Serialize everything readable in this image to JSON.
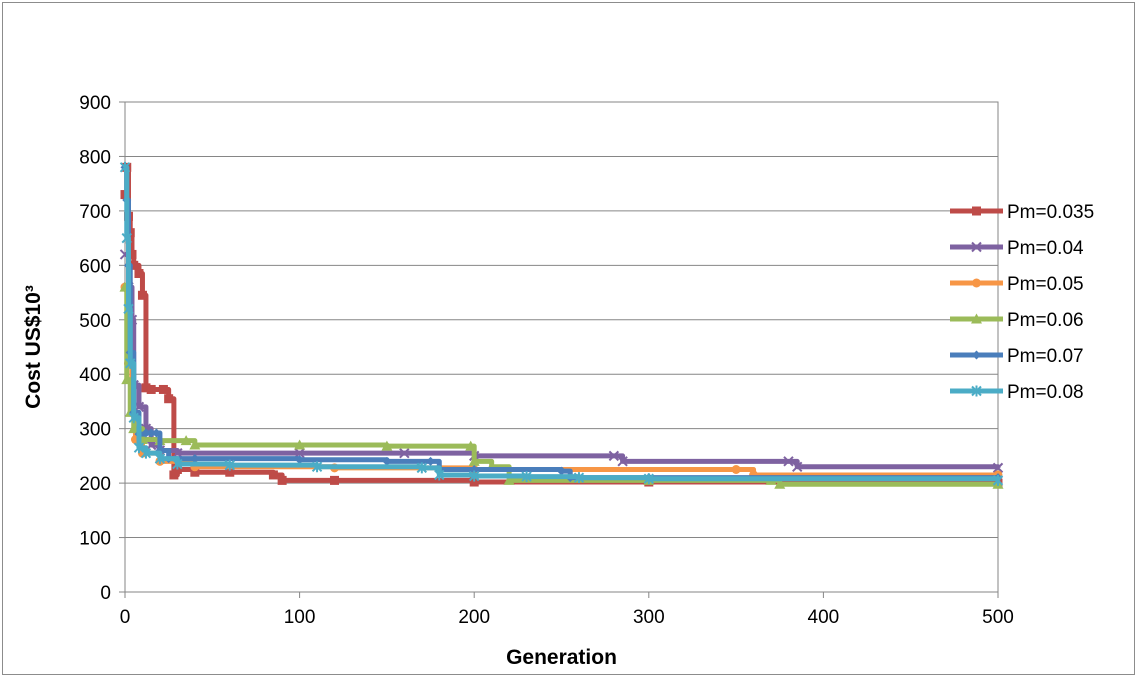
{
  "chart_data": {
    "type": "line",
    "title": "",
    "xlabel": "Generation",
    "ylabel": "Cost  US$10³",
    "xlim": [
      0,
      500
    ],
    "ylim": [
      0,
      900
    ],
    "x_ticks": [
      "0",
      "100",
      "200",
      "300",
      "400",
      "500"
    ],
    "y_ticks": [
      "0",
      "100",
      "200",
      "300",
      "400",
      "500",
      "600",
      "700",
      "800",
      "900"
    ],
    "grid": "horizontal",
    "legend_position": "right",
    "series": [
      {
        "name": "Pm=0.035",
        "color": "#BE4B48",
        "marker": "square",
        "points": [
          [
            0,
            730
          ],
          [
            1,
            780
          ],
          [
            2,
            690
          ],
          [
            3,
            660
          ],
          [
            4,
            620
          ],
          [
            5,
            600
          ],
          [
            8,
            585
          ],
          [
            10,
            545
          ],
          [
            12,
            375
          ],
          [
            15,
            372
          ],
          [
            22,
            372
          ],
          [
            25,
            355
          ],
          [
            28,
            215
          ],
          [
            30,
            225
          ],
          [
            40,
            220
          ],
          [
            60,
            220
          ],
          [
            85,
            215
          ],
          [
            90,
            205
          ],
          [
            120,
            205
          ],
          [
            200,
            202
          ],
          [
            300,
            202
          ],
          [
            500,
            200
          ]
        ]
      },
      {
        "name": "Pm=0.04",
        "color": "#7E62A1",
        "marker": "x",
        "points": [
          [
            0,
            620
          ],
          [
            2,
            560
          ],
          [
            4,
            500
          ],
          [
            5,
            380
          ],
          [
            8,
            340
          ],
          [
            12,
            300
          ],
          [
            15,
            270
          ],
          [
            20,
            260
          ],
          [
            30,
            255
          ],
          [
            100,
            255
          ],
          [
            160,
            255
          ],
          [
            200,
            250
          ],
          [
            280,
            250
          ],
          [
            285,
            240
          ],
          [
            380,
            240
          ],
          [
            385,
            230
          ],
          [
            500,
            228
          ]
        ]
      },
      {
        "name": "Pm=0.05",
        "color": "#F79646",
        "marker": "circle",
        "points": [
          [
            0,
            560
          ],
          [
            2,
            420
          ],
          [
            4,
            330
          ],
          [
            6,
            280
          ],
          [
            10,
            255
          ],
          [
            20,
            240
          ],
          [
            40,
            230
          ],
          [
            120,
            228
          ],
          [
            200,
            225
          ],
          [
            350,
            225
          ],
          [
            360,
            215
          ],
          [
            500,
            215
          ]
        ]
      },
      {
        "name": "Pm=0.06",
        "color": "#9BBB59",
        "marker": "triangle",
        "points": [
          [
            0,
            560
          ],
          [
            1,
            390
          ],
          [
            3,
            330
          ],
          [
            5,
            300
          ],
          [
            10,
            280
          ],
          [
            20,
            278
          ],
          [
            35,
            278
          ],
          [
            40,
            270
          ],
          [
            100,
            270
          ],
          [
            150,
            268
          ],
          [
            198,
            268
          ],
          [
            200,
            240
          ],
          [
            210,
            230
          ],
          [
            220,
            205
          ],
          [
            300,
            205
          ],
          [
            370,
            205
          ],
          [
            375,
            198
          ],
          [
            500,
            198
          ]
        ]
      },
      {
        "name": "Pm=0.07",
        "color": "#4A7EBB",
        "marker": "diamond",
        "points": [
          [
            0,
            780
          ],
          [
            1,
            720
          ],
          [
            2,
            600
          ],
          [
            3,
            440
          ],
          [
            5,
            330
          ],
          [
            8,
            290
          ],
          [
            12,
            292
          ],
          [
            15,
            292
          ],
          [
            18,
            292
          ],
          [
            20,
            260
          ],
          [
            25,
            245
          ],
          [
            40,
            245
          ],
          [
            100,
            243
          ],
          [
            150,
            240
          ],
          [
            175,
            240
          ],
          [
            180,
            225
          ],
          [
            200,
            225
          ],
          [
            250,
            222
          ],
          [
            255,
            210
          ],
          [
            300,
            210
          ],
          [
            500,
            210
          ]
        ]
      },
      {
        "name": "Pm=0.08",
        "color": "#4BACC6",
        "marker": "star",
        "points": [
          [
            0,
            780
          ],
          [
            1,
            650
          ],
          [
            2,
            520
          ],
          [
            3,
            420
          ],
          [
            5,
            320
          ],
          [
            8,
            265
          ],
          [
            12,
            255
          ],
          [
            20,
            245
          ],
          [
            30,
            235
          ],
          [
            60,
            233
          ],
          [
            110,
            230
          ],
          [
            170,
            228
          ],
          [
            180,
            215
          ],
          [
            200,
            213
          ],
          [
            230,
            212
          ],
          [
            260,
            210
          ],
          [
            300,
            208
          ],
          [
            500,
            205
          ]
        ]
      }
    ]
  }
}
